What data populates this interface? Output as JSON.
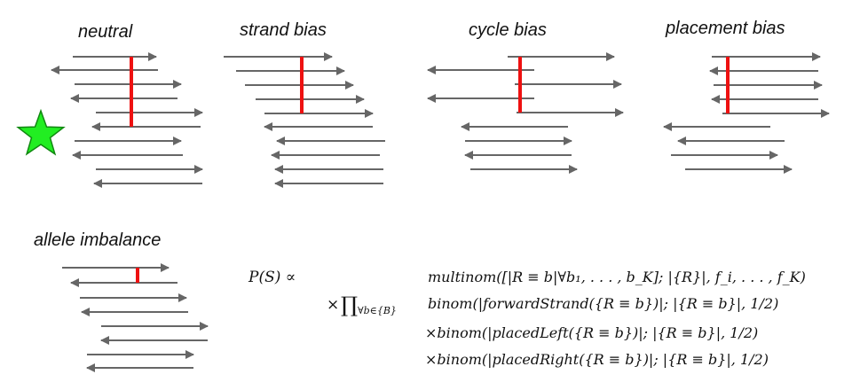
{
  "panels": {
    "neutral": {
      "title": "neutral"
    },
    "strand": {
      "title": "strand bias"
    },
    "cycle": {
      "title": "cycle bias"
    },
    "placement": {
      "title": "placement bias"
    },
    "allele": {
      "title": "allele imbalance"
    }
  },
  "colors": {
    "read": "#666666",
    "variant": "#ee1111",
    "star": "#22ee22",
    "star_stroke": "#118811"
  },
  "formula": {
    "lhs": "P(S) ∝",
    "times": "×",
    "prod_symbol": "∏",
    "prod_subscript": "∀b∈{B}",
    "line1": "multinom([|R ≡ b|∀b₁, . . . , b_K]; |{R}|, f_i, . . . , f_K)",
    "line2": "binom(|forwardStrand({R ≡ b})|; |{R ≡ b}|, 1/2)",
    "line3": "×binom(|placedLeft({R ≡ b})|; |{R ≡ b}|, 1/2)",
    "line4": "×binom(|placedRight({R ≡ b})|; |{R ≡ b}|, 1/2)"
  }
}
